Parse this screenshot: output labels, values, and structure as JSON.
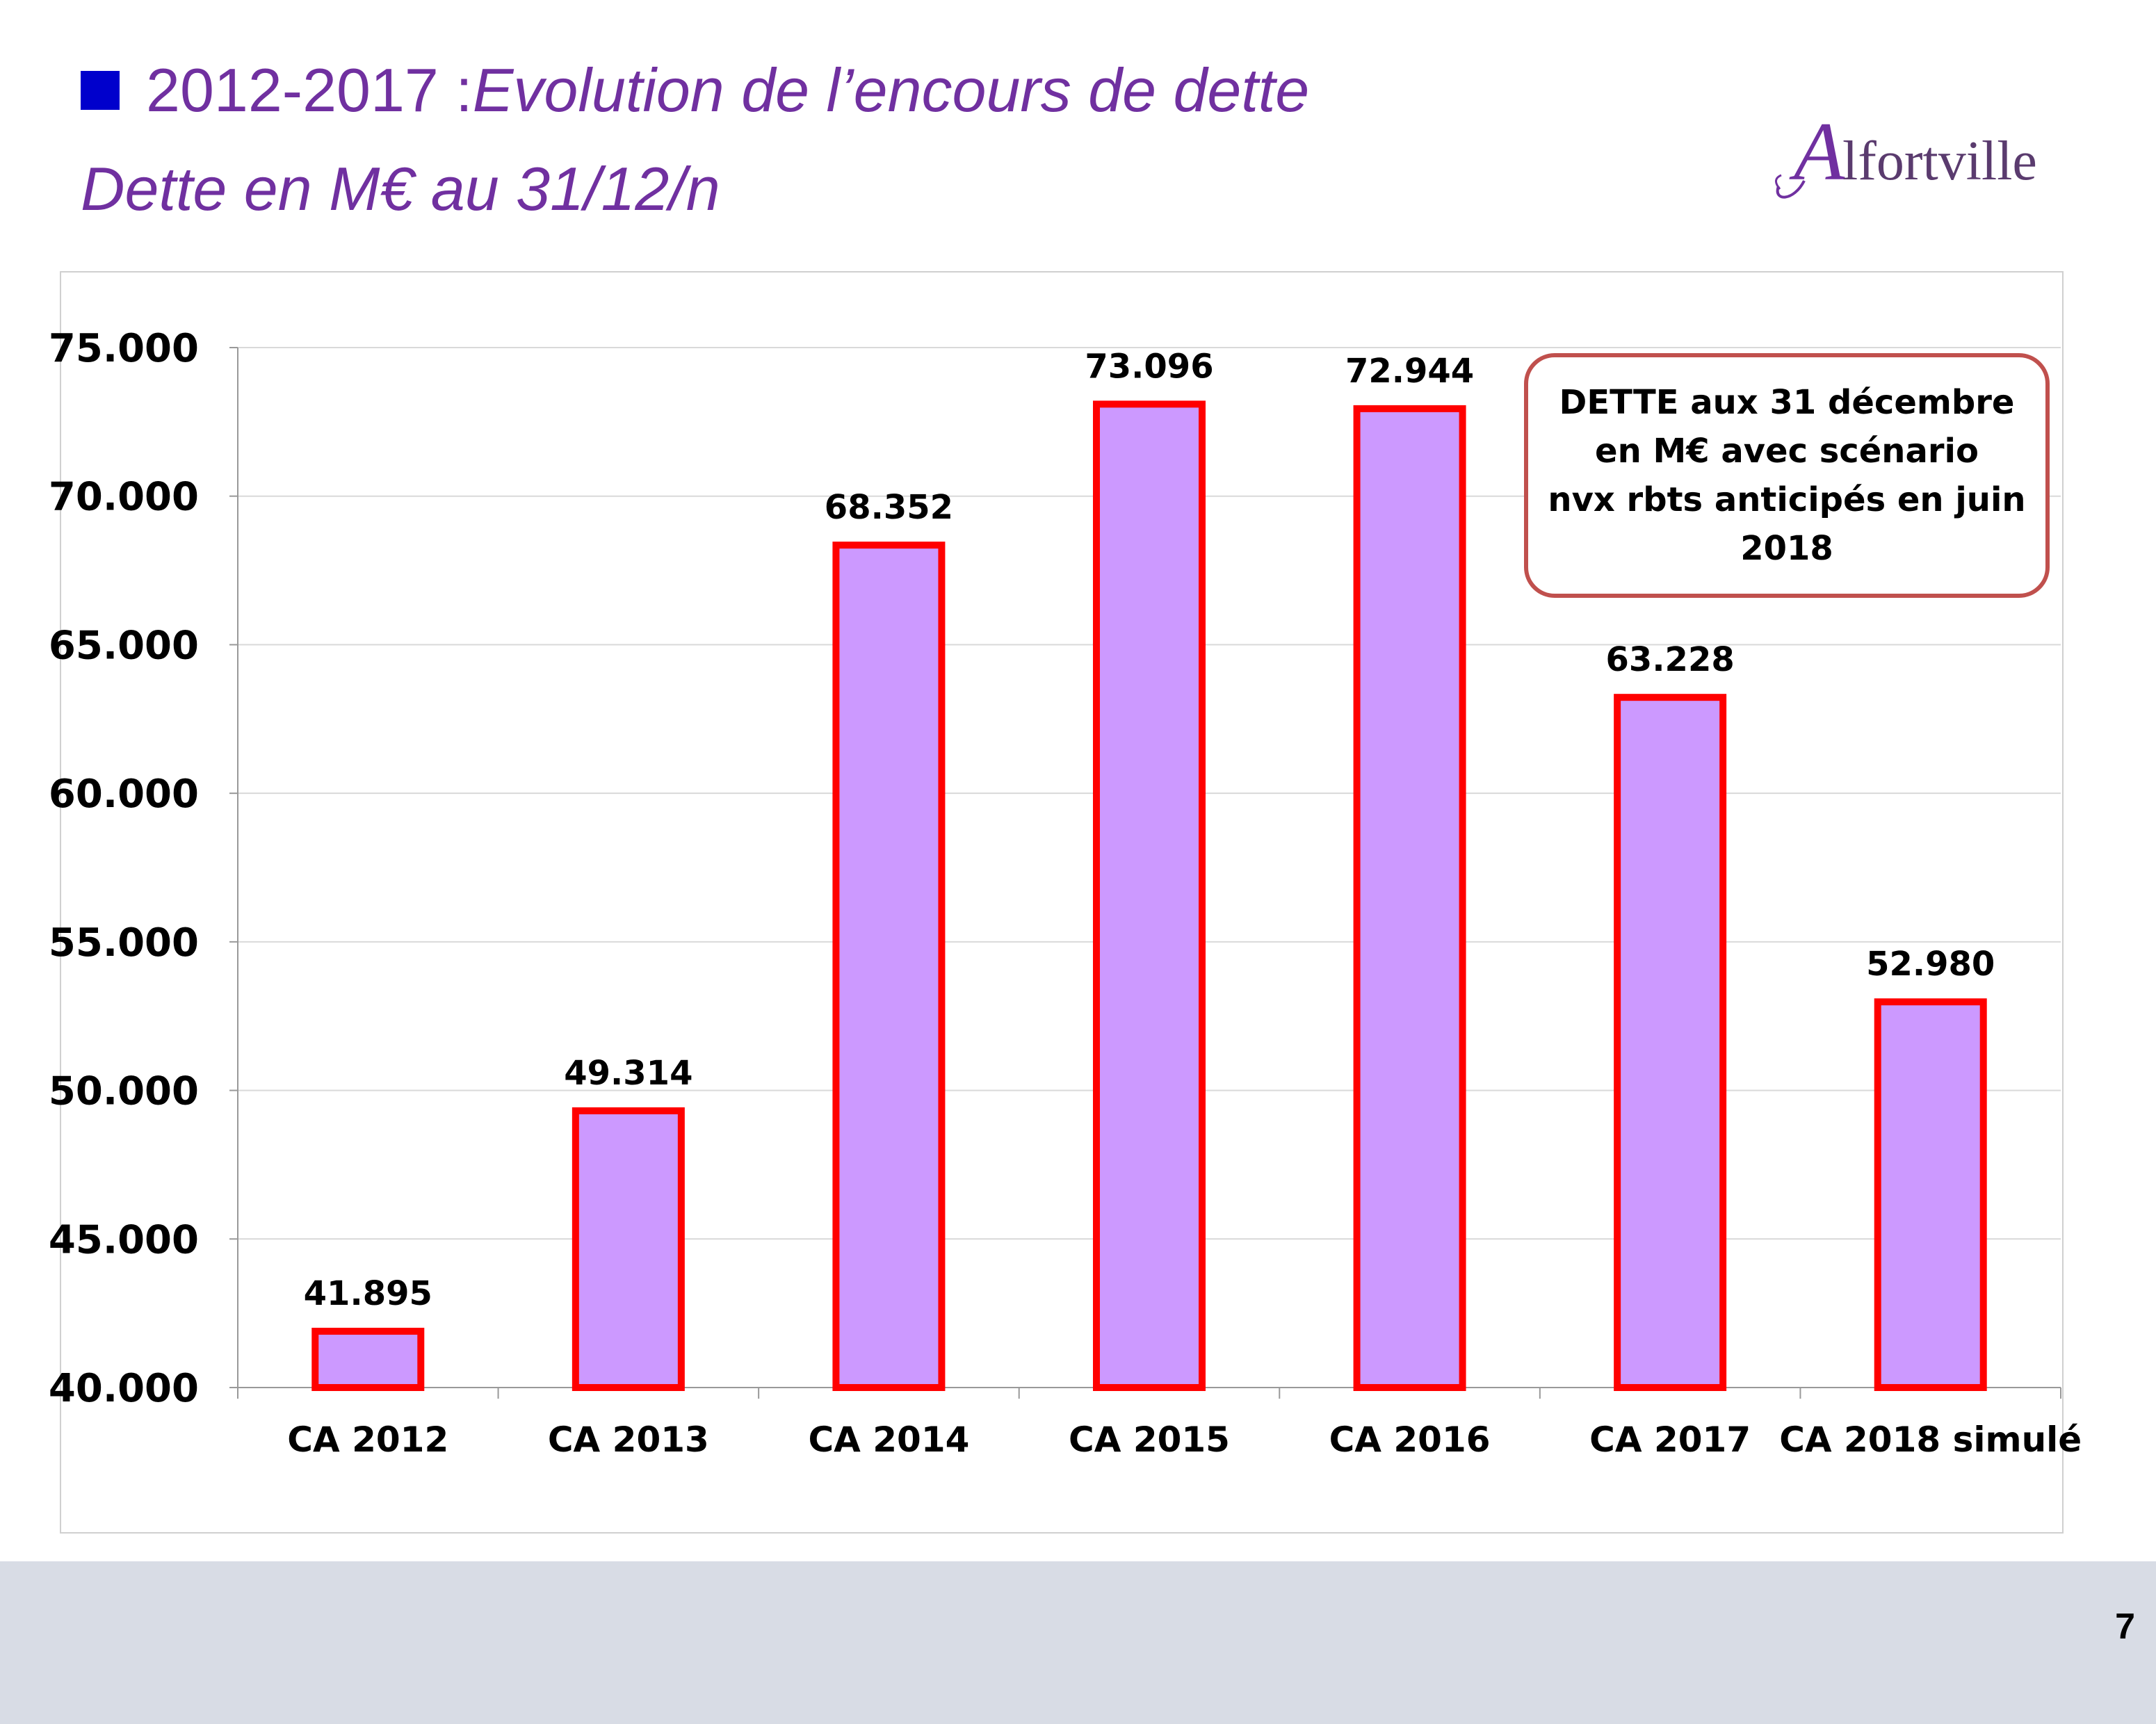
{
  "slide": {
    "title_prefix": "2012-2017 : ",
    "title_italic": "Evolution de l’encours de dette",
    "subtitle": "Dette en M€ au 31/12/n",
    "logo_text": "lfortville",
    "logo_initial": "A",
    "page_number": "7"
  },
  "annotation": {
    "lines": [
      "DETTE aux 31 décembre",
      "en M€ avec scénario",
      "nvx rbts anticipés en  juin",
      "2018"
    ]
  },
  "colors": {
    "title": "#7030a0",
    "bullet": "#0000cc",
    "bar_fill": "#cc99ff",
    "bar_border": "#ff0000",
    "annotation_border": "#c0504d",
    "footer": "#d8dce5"
  },
  "chart_data": {
    "type": "bar",
    "categories": [
      "CA 2012",
      "CA 2013",
      "CA 2014",
      "CA 2015",
      "CA 2016",
      "CA 2017",
      "CA 2018 simulé"
    ],
    "values": [
      41.895,
      49.314,
      68.352,
      73.096,
      72.944,
      63.228,
      52.98
    ],
    "value_labels": [
      "41.895",
      "49.314",
      "68.352",
      "73.096",
      "72.944",
      "63.228",
      "52.980"
    ],
    "yticks": [
      40,
      45,
      50,
      55,
      60,
      65,
      70,
      75
    ],
    "ytick_labels": [
      "40.000",
      "45.000",
      "50.000",
      "55.000",
      "60.000",
      "65.000",
      "70.000",
      "75.000"
    ],
    "ylim": [
      40,
      75
    ],
    "grid": true,
    "title": "",
    "xlabel": "",
    "ylabel": ""
  }
}
